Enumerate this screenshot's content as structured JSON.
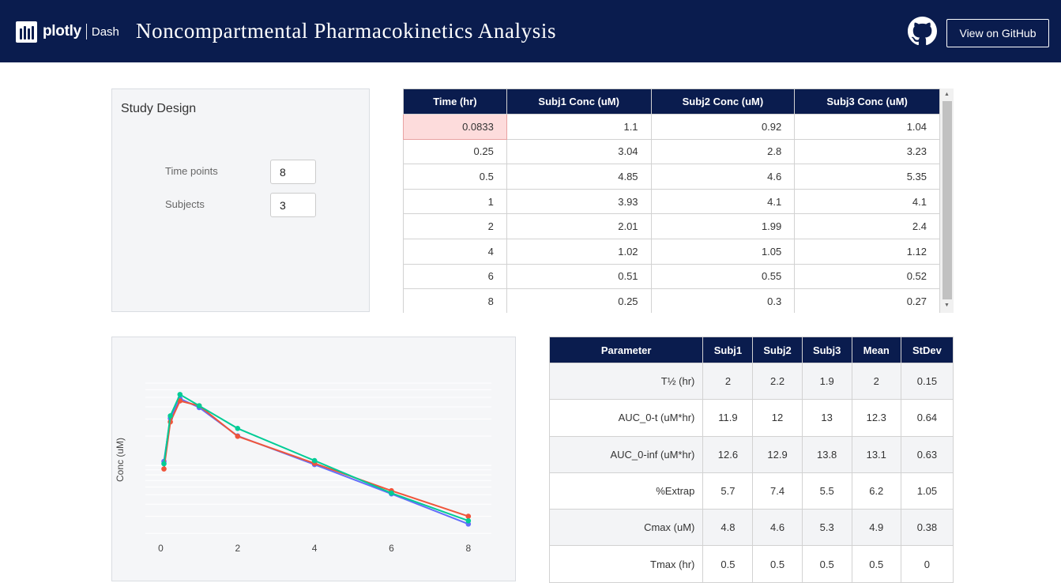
{
  "header": {
    "logo_text": "plotly",
    "logo_product": "Dash",
    "title": "Noncompartmental Pharmacokinetics Analysis",
    "github_icon": "github-icon",
    "github_button": "View on GitHub",
    "colors": {
      "header_bg": "#0a1c4e",
      "text": "#ffffff"
    }
  },
  "study_design": {
    "title": "Study Design",
    "time_points_label": "Time points",
    "time_points_value": "8",
    "subjects_label": "Subjects",
    "subjects_value": "3"
  },
  "data_table": {
    "columns": [
      "Time (hr)",
      "Subj1 Conc (uM)",
      "Subj2 Conc (uM)",
      "Subj3 Conc (uM)"
    ],
    "rows": [
      [
        "0.0833",
        "1.1",
        "0.92",
        "1.04"
      ],
      [
        "0.25",
        "3.04",
        "2.8",
        "3.23"
      ],
      [
        "0.5",
        "4.85",
        "4.6",
        "5.35"
      ],
      [
        "1",
        "3.93",
        "4.1",
        "4.1"
      ],
      [
        "2",
        "2.01",
        "1.99",
        "2.4"
      ],
      [
        "4",
        "1.02",
        "1.05",
        "1.12"
      ],
      [
        "6",
        "0.51",
        "0.55",
        "0.52"
      ],
      [
        "8",
        "0.25",
        "0.3",
        "0.27"
      ]
    ],
    "active_cell_color": "#fddcdc"
  },
  "chart_data": {
    "type": "line",
    "ylabel": "Conc (uM)",
    "xlabel": "",
    "x": [
      0.0833,
      0.25,
      0.5,
      1,
      2,
      4,
      6,
      8
    ],
    "xticks": [
      "0",
      "2",
      "4",
      "6",
      "8"
    ],
    "xlim": [
      -0.4,
      8.6
    ],
    "log_y": true,
    "ylim": [
      0.17,
      7
    ],
    "grid": true,
    "series": [
      {
        "values": [
          1.1,
          3.04,
          4.85,
          3.93,
          2.01,
          1.02,
          0.51,
          0.25
        ],
        "color": "#636efa"
      },
      {
        "values": [
          0.92,
          2.8,
          4.6,
          4.1,
          1.99,
          1.05,
          0.55,
          0.3
        ],
        "color": "#ef553b"
      },
      {
        "values": [
          1.04,
          3.23,
          5.35,
          4.1,
          2.4,
          1.12,
          0.52,
          0.27
        ],
        "color": "#00cc96"
      }
    ]
  },
  "results_table": {
    "columns": [
      "Parameter",
      "Subj1",
      "Subj2",
      "Subj3",
      "Mean",
      "StDev"
    ],
    "rows": [
      [
        "T½ (hr)",
        "2",
        "2.2",
        "1.9",
        "2",
        "0.15"
      ],
      [
        "AUC_0-t (uM*hr)",
        "11.9",
        "12",
        "13",
        "12.3",
        "0.64"
      ],
      [
        "AUC_0-inf (uM*hr)",
        "12.6",
        "12.9",
        "13.8",
        "13.1",
        "0.63"
      ],
      [
        "%Extrap",
        "5.7",
        "7.4",
        "5.5",
        "6.2",
        "1.05"
      ],
      [
        "Cmax (uM)",
        "4.8",
        "4.6",
        "5.3",
        "4.9",
        "0.38"
      ],
      [
        "Tmax (hr)",
        "0.5",
        "0.5",
        "0.5",
        "0.5",
        "0"
      ]
    ]
  }
}
